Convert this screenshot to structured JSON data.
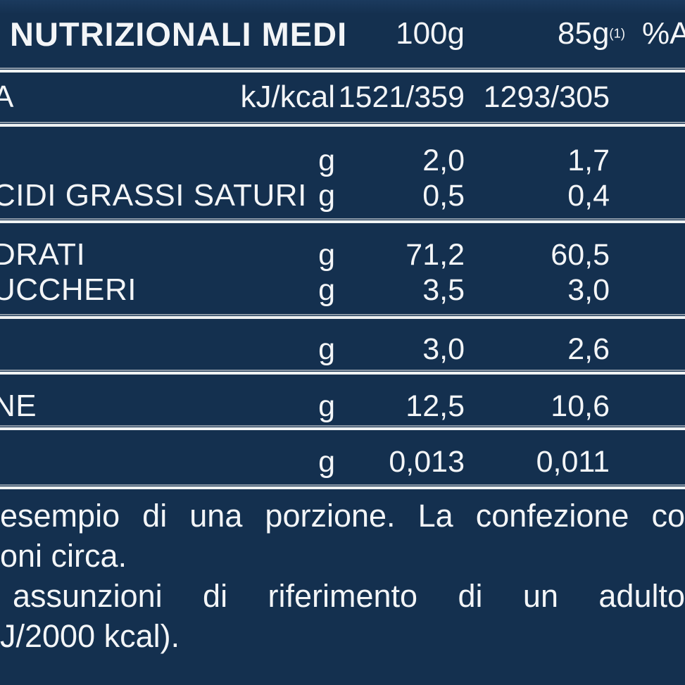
{
  "colors": {
    "background": "#14304F",
    "text": "#F3F5F7",
    "rule_main": "#EFF2F3",
    "rule_shadow": "#8C99A7"
  },
  "header": {
    "title": "NUTRIZIONALI MEDI",
    "per100_label": "100g",
    "per85_label": "85g",
    "per85_sup": "(1)",
    "ar_label": "%A"
  },
  "table": {
    "sections": [
      {
        "rows": [
          {
            "label": "A",
            "unit": "kJ/kcal",
            "per100": "1521/359",
            "per85": "1293/305"
          }
        ]
      },
      {
        "rows": [
          {
            "label": "",
            "unit": "g",
            "per100": "2,0",
            "per85": "1,7"
          },
          {
            "label": "CIDI GRASSI SATURI",
            "unit": "g",
            "per100": "0,5",
            "per85": "0,4"
          }
        ]
      },
      {
        "rows": [
          {
            "label": "DRATI",
            "unit": "g",
            "per100": "71,2",
            "per85": "60,5"
          },
          {
            "label": "UCCHERI",
            "unit": "g",
            "per100": "3,5",
            "per85": "3,0"
          }
        ]
      },
      {
        "rows": [
          {
            "label": "",
            "unit": "g",
            "per100": "3,0",
            "per85": "2,6"
          }
        ]
      },
      {
        "rows": [
          {
            "label": "NE",
            "unit": "g",
            "per100": "12,5",
            "per85": "10,6"
          }
        ]
      },
      {
        "rows": [
          {
            "label": "",
            "unit": "g",
            "per100": "0,013",
            "per85": "0,011"
          }
        ]
      }
    ]
  },
  "footnote": {
    "line1": "esempio di una porzione. La confezione co",
    "line2": "oni circa.",
    "line3": "assunzioni di riferimento di un adulto",
    "line4": "J/2000 kcal)."
  }
}
